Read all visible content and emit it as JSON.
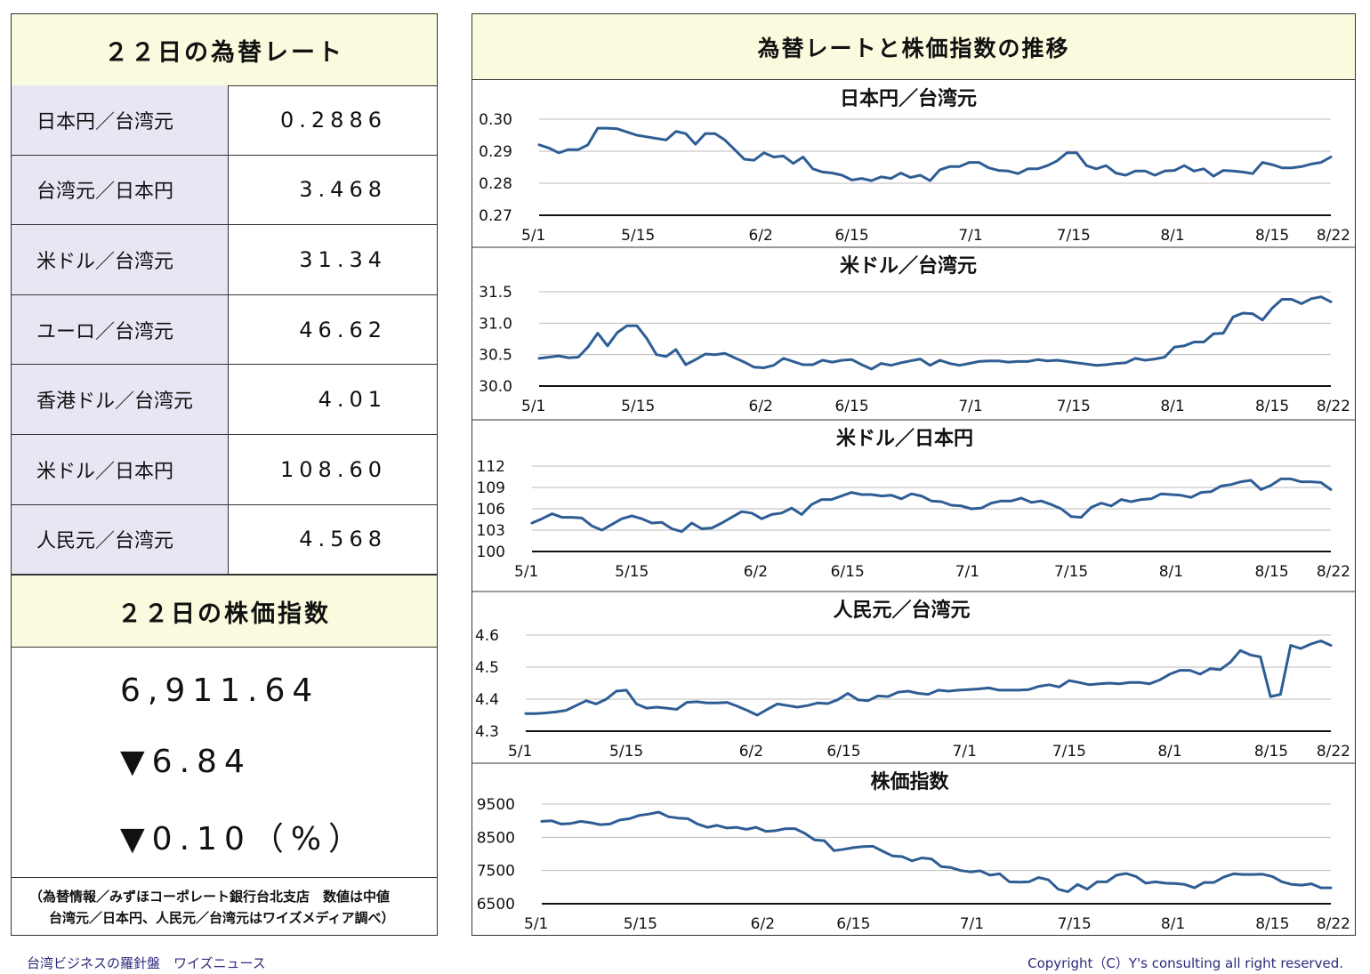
{
  "left": {
    "rates_title": "２２日の為替レート",
    "rates": [
      {
        "label": "日本円／台湾元",
        "value": "0.2886"
      },
      {
        "label": "台湾元／日本円",
        "value": "3.468"
      },
      {
        "label": "米ドル／台湾元",
        "value": "31.34"
      },
      {
        "label": "ユーロ／台湾元",
        "value": "46.62"
      },
      {
        "label": "香港ドル／台湾元",
        "value": "4.01"
      },
      {
        "label": "米ドル／日本円",
        "value": "108.60"
      },
      {
        "label": "人民元／台湾元",
        "value": "4.568"
      }
    ],
    "stock_title": "２２日の株価指数",
    "stock_value": "6,911.64",
    "stock_change": "▼6.84",
    "stock_change_pct": "▼0.10（%）",
    "source_line1": "（為替情報／みずほコーポレート銀行台北支店　数値は中値",
    "source_line2": "台湾元／日本円、人民元／台湾元はワイズメディア調べ）"
  },
  "right_title": "為替レートと株価指数の推移",
  "footer_left": "台湾ビジネスの羅針盤　ワイズニュース",
  "footer_right": "Copyright（C）Y's consulting all right reserved.",
  "line_color": "#2e5d94",
  "chart_data": [
    {
      "type": "line",
      "title": "日本円／台湾元",
      "x_ticks": [
        "5/1",
        "5/15",
        "6/2",
        "6/15",
        "7/1",
        "7/15",
        "8/1",
        "8/15",
        "8/22"
      ],
      "y_ticks": [
        "0.30",
        "0.29",
        "0.28",
        "0.27"
      ],
      "ylim": [
        0.27,
        0.3
      ],
      "values": [
        0.292,
        0.291,
        0.2895,
        0.2905,
        0.2905,
        0.292,
        0.2972,
        0.2972,
        0.297,
        0.296,
        0.295,
        0.2945,
        0.294,
        0.2935,
        0.2962,
        0.2955,
        0.2922,
        0.2955,
        0.2955,
        0.2935,
        0.2905,
        0.2875,
        0.2872,
        0.2895,
        0.2882,
        0.2885,
        0.2862,
        0.2882,
        0.2845,
        0.2835,
        0.2832,
        0.2825,
        0.281,
        0.2815,
        0.2808,
        0.282,
        0.2815,
        0.2832,
        0.2818,
        0.2825,
        0.2808,
        0.2842,
        0.2852,
        0.2852,
        0.2865,
        0.2865,
        0.2848,
        0.284,
        0.2838,
        0.283,
        0.2845,
        0.2845,
        0.2855,
        0.287,
        0.2895,
        0.2895,
        0.2855,
        0.2845,
        0.2855,
        0.2832,
        0.2825,
        0.2838,
        0.2838,
        0.2825,
        0.2838,
        0.284,
        0.2855,
        0.2838,
        0.2845,
        0.2822,
        0.284,
        0.2838,
        0.2835,
        0.283,
        0.2865,
        0.2858,
        0.2848,
        0.2848,
        0.2852,
        0.286,
        0.2865,
        0.2882
      ]
    },
    {
      "type": "line",
      "title": "米ドル／台湾元",
      "x_ticks": [
        "5/1",
        "5/15",
        "6/2",
        "6/15",
        "7/1",
        "7/15",
        "8/1",
        "8/15",
        "8/22"
      ],
      "y_ticks": [
        "31.5",
        "31.0",
        "30.5",
        "30.0"
      ],
      "ylim": [
        30.0,
        31.5
      ],
      "values": [
        30.44,
        30.46,
        30.48,
        30.45,
        30.46,
        30.62,
        30.84,
        30.64,
        30.85,
        30.96,
        30.96,
        30.76,
        30.5,
        30.47,
        30.58,
        30.34,
        30.42,
        30.51,
        30.5,
        30.52,
        30.45,
        30.38,
        30.3,
        30.29,
        30.33,
        30.44,
        30.39,
        30.34,
        30.34,
        30.41,
        30.38,
        30.41,
        30.42,
        30.34,
        30.27,
        30.36,
        30.33,
        30.37,
        30.4,
        30.43,
        30.33,
        30.41,
        30.36,
        30.33,
        30.36,
        30.39,
        30.4,
        30.4,
        30.38,
        30.39,
        30.39,
        30.42,
        30.4,
        30.41,
        30.39,
        30.37,
        30.35,
        30.33,
        30.34,
        30.36,
        30.37,
        30.44,
        30.41,
        30.43,
        30.46,
        30.62,
        30.64,
        30.7,
        30.7,
        30.83,
        30.84,
        31.1,
        31.16,
        31.15,
        31.05,
        31.24,
        31.38,
        31.38,
        31.31,
        31.39,
        31.42,
        31.34
      ]
    },
    {
      "type": "line",
      "title": "米ドル／日本円",
      "x_ticks": [
        "5/1",
        "5/15",
        "6/2",
        "6/15",
        "7/1",
        "7/15",
        "8/1",
        "8/15",
        "8/22"
      ],
      "y_ticks": [
        "112",
        "109",
        "106",
        "103",
        "100"
      ],
      "ylim": [
        100,
        112
      ],
      "values": [
        104.0,
        104.6,
        105.3,
        104.8,
        104.8,
        104.7,
        103.6,
        103.0,
        103.8,
        104.6,
        105.0,
        104.6,
        104.0,
        104.1,
        103.2,
        102.8,
        104.0,
        103.2,
        103.3,
        104.0,
        104.8,
        105.6,
        105.4,
        104.6,
        105.2,
        105.4,
        106.1,
        105.2,
        106.6,
        107.3,
        107.3,
        107.8,
        108.3,
        108.0,
        108.0,
        107.8,
        107.9,
        107.4,
        108.1,
        107.8,
        107.1,
        107.0,
        106.5,
        106.4,
        106.0,
        106.1,
        106.8,
        107.1,
        107.1,
        107.5,
        106.9,
        107.1,
        106.6,
        106.0,
        104.9,
        104.8,
        106.2,
        106.8,
        106.4,
        107.3,
        107.0,
        107.3,
        107.4,
        108.1,
        108.0,
        107.9,
        107.6,
        108.3,
        108.4,
        109.2,
        109.4,
        109.8,
        110.0,
        108.7,
        109.3,
        110.2,
        110.2,
        109.8,
        109.8,
        109.7,
        108.7
      ]
    },
    {
      "type": "line",
      "title": "人民元／台湾元",
      "x_ticks": [
        "5/1",
        "5/15",
        "6/2",
        "6/15",
        "7/1",
        "7/15",
        "8/1",
        "8/15",
        "8/22"
      ],
      "y_ticks": [
        "4.6",
        "4.5",
        "4.4",
        "4.3"
      ],
      "ylim": [
        4.3,
        4.6
      ],
      "values": [
        4.355,
        4.355,
        4.357,
        4.36,
        4.365,
        4.38,
        4.395,
        4.385,
        4.4,
        4.425,
        4.428,
        4.385,
        4.372,
        4.375,
        4.372,
        4.368,
        4.39,
        4.392,
        4.388,
        4.388,
        4.39,
        4.378,
        4.365,
        4.35,
        4.368,
        4.385,
        4.38,
        4.375,
        4.38,
        4.388,
        4.386,
        4.398,
        4.418,
        4.398,
        4.395,
        4.41,
        4.408,
        4.422,
        4.425,
        4.418,
        4.415,
        4.428,
        4.425,
        4.428,
        4.43,
        4.432,
        4.435,
        4.428,
        4.428,
        4.428,
        4.43,
        4.44,
        4.445,
        4.438,
        4.458,
        4.452,
        4.445,
        4.448,
        4.45,
        4.448,
        4.452,
        4.452,
        4.448,
        4.46,
        4.478,
        4.49,
        4.49,
        4.478,
        4.495,
        4.492,
        4.515,
        4.552,
        4.538,
        4.532,
        4.408,
        4.415,
        4.568,
        4.558,
        4.572,
        4.582,
        4.568
      ]
    },
    {
      "type": "line",
      "title": "株価指数",
      "x_ticks": [
        "5/1",
        "5/15",
        "6/2",
        "6/15",
        "7/1",
        "7/15",
        "8/1",
        "8/15",
        "8/22"
      ],
      "y_ticks": [
        "9500",
        "8500",
        "7500",
        "6500"
      ],
      "ylim": [
        6500,
        9500
      ],
      "values": [
        8980,
        9000,
        8900,
        8920,
        8980,
        8940,
        8880,
        8900,
        9020,
        9060,
        9160,
        9200,
        9260,
        9120,
        9080,
        9060,
        8900,
        8800,
        8860,
        8780,
        8800,
        8740,
        8800,
        8680,
        8700,
        8760,
        8760,
        8620,
        8420,
        8400,
        8100,
        8140,
        8190,
        8220,
        8230,
        8080,
        7940,
        7920,
        7790,
        7880,
        7850,
        7620,
        7590,
        7500,
        7460,
        7490,
        7360,
        7400,
        7160,
        7150,
        7160,
        7290,
        7220,
        6940,
        6860,
        7080,
        6940,
        7160,
        7160,
        7360,
        7410,
        7320,
        7120,
        7160,
        7120,
        7110,
        7080,
        6980,
        7140,
        7140,
        7300,
        7400,
        7380,
        7380,
        7390,
        7320,
        7160,
        7080,
        7060,
        7100,
        6980,
        6980
      ]
    }
  ]
}
